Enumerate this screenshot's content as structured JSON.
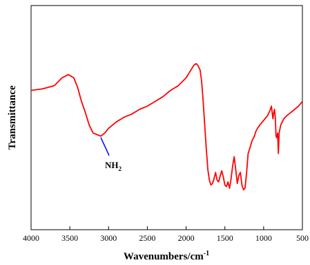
{
  "chart_data": {
    "type": "line",
    "title": "",
    "xlabel": "Wavenumbers/cm",
    "xlabel_sup": "-1",
    "ylabel": "Transmittance",
    "xlim": [
      4000,
      500
    ],
    "x_reversed": true,
    "y_ticks_shown": false,
    "grid": false,
    "legend": "none",
    "xticks": [
      "4000",
      "3500",
      "3000",
      "2500",
      "2000",
      "1500",
      "1000",
      "500"
    ],
    "series": [
      {
        "color": "#ff0000",
        "x": [
          4000,
          3850,
          3700,
          3600,
          3520,
          3450,
          3400,
          3350,
          3300,
          3250,
          3200,
          3150,
          3100,
          3050,
          3000,
          2900,
          2800,
          2700,
          2600,
          2500,
          2400,
          2300,
          2200,
          2100,
          2000,
          1950,
          1900,
          1870,
          1850,
          1820,
          1800,
          1780,
          1760,
          1740,
          1720,
          1700,
          1680,
          1660,
          1640,
          1620,
          1600,
          1580,
          1560,
          1540,
          1520,
          1500,
          1480,
          1460,
          1440,
          1420,
          1400,
          1380,
          1360,
          1340,
          1320,
          1300,
          1280,
          1260,
          1240,
          1220,
          1200,
          1180,
          1150,
          1120,
          1100,
          1080,
          1050,
          1000,
          950,
          920,
          900,
          880,
          870,
          860,
          850,
          840,
          830,
          820,
          810,
          800,
          780,
          760,
          740,
          720,
          700,
          650,
          600,
          550,
          500
        ],
        "y": [
          0.62,
          0.63,
          0.65,
          0.7,
          0.72,
          0.7,
          0.64,
          0.55,
          0.48,
          0.4,
          0.35,
          0.34,
          0.33,
          0.35,
          0.38,
          0.42,
          0.45,
          0.47,
          0.5,
          0.52,
          0.55,
          0.58,
          0.62,
          0.65,
          0.7,
          0.74,
          0.78,
          0.79,
          0.78,
          0.75,
          0.68,
          0.55,
          0.4,
          0.25,
          0.12,
          0.05,
          0.02,
          0.03,
          0.06,
          0.1,
          0.05,
          0.04,
          0.08,
          0.11,
          0.07,
          0.02,
          0.01,
          0.04,
          0.0,
          0.06,
          0.14,
          0.2,
          0.12,
          0.03,
          0.08,
          0.1,
          0.02,
          -0.01,
          0.0,
          0.1,
          0.22,
          0.25,
          0.3,
          0.33,
          0.36,
          0.38,
          0.4,
          0.43,
          0.46,
          0.49,
          0.52,
          0.44,
          0.48,
          0.5,
          0.45,
          0.33,
          0.32,
          0.35,
          0.22,
          0.35,
          0.4,
          0.42,
          0.44,
          0.45,
          0.46,
          0.48,
          0.5,
          0.52,
          0.55
        ]
      }
    ],
    "annotations": [
      {
        "text": "NH",
        "sub": "2",
        "x": 3100,
        "y": 0.33,
        "line_color": "#0000ff"
      }
    ]
  }
}
